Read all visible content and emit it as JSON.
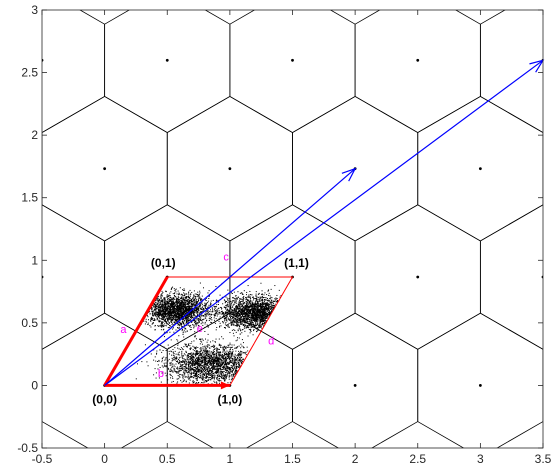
{
  "chart_data": {
    "type": "scatter",
    "title": "",
    "xlabel": "",
    "ylabel": "",
    "xlim": [
      -0.5,
      3.5
    ],
    "ylim": [
      -0.5,
      3
    ],
    "grid": false,
    "xticks": [
      "-0.5",
      "0",
      "0.5",
      "1",
      "1.5",
      "2",
      "2.5",
      "3",
      "3.5"
    ],
    "yticks": [
      "-0.5",
      "0",
      "0.5",
      "1",
      "1.5",
      "2",
      "2.5",
      "3"
    ],
    "lattice": {
      "basis_1": [
        1,
        0
      ],
      "basis_2": [
        0.5,
        0.866
      ],
      "voronoi_cell": "hexagon",
      "cell_circumradius": 0.5774,
      "lattice_points": [
        [
          0,
          0
        ],
        [
          1,
          0
        ],
        [
          2,
          0
        ],
        [
          3,
          0
        ],
        [
          -0.5,
          0.866
        ],
        [
          0.5,
          0.866
        ],
        [
          1.5,
          0.866
        ],
        [
          2.5,
          0.866
        ],
        [
          3.5,
          0.866
        ],
        [
          0,
          1.732
        ],
        [
          1,
          1.732
        ],
        [
          2,
          1.732
        ],
        [
          3,
          1.732
        ],
        [
          -0.5,
          2.598
        ],
        [
          0.5,
          2.598
        ],
        [
          1.5,
          2.598
        ],
        [
          2.5,
          2.598
        ],
        [
          3.5,
          2.598
        ]
      ],
      "color": "#000000"
    },
    "fundamental_parallelogram": {
      "color": "#ff0000",
      "vertices": [
        [
          0,
          0
        ],
        [
          1,
          0
        ],
        [
          1.5,
          0.866
        ],
        [
          0.5,
          0.866
        ]
      ],
      "vertex_labels": [
        {
          "text": "(0,0)",
          "at": [
            0,
            0
          ]
        },
        {
          "text": "(1,0)",
          "at": [
            1,
            0
          ]
        },
        {
          "text": "(1,1)",
          "at": [
            1.5,
            0.866
          ]
        },
        {
          "text": "(0,1)",
          "at": [
            0.5,
            0.866
          ]
        }
      ]
    },
    "samples": {
      "color": "#000000",
      "count": 6000,
      "clusters": [
        {
          "center": [
            0.58,
            0.6
          ],
          "spread": [
            0.22,
            0.11
          ]
        },
        {
          "center": [
            1.2,
            0.58
          ],
          "spread": [
            0.22,
            0.11
          ]
        },
        {
          "center": [
            0.85,
            0.17
          ],
          "spread": [
            0.3,
            0.13
          ]
        }
      ]
    },
    "arrows": {
      "color": "#0000ff",
      "vectors": [
        {
          "from": [
            0,
            0
          ],
          "to": [
            2,
            1.732
          ]
        },
        {
          "from": [
            0,
            0
          ],
          "to": [
            3.5,
            2.598
          ]
        }
      ]
    },
    "annotations": {
      "color": "#ff00ff",
      "items": [
        {
          "text": "a",
          "at": [
            0.15,
            0.45
          ]
        },
        {
          "text": "b",
          "at": [
            0.45,
            0.1
          ]
        },
        {
          "text": "c",
          "at": [
            0.97,
            1.03
          ]
        },
        {
          "text": "d",
          "at": [
            1.33,
            0.36
          ]
        },
        {
          "text": "e",
          "at": [
            0.76,
            0.46
          ]
        }
      ]
    }
  }
}
